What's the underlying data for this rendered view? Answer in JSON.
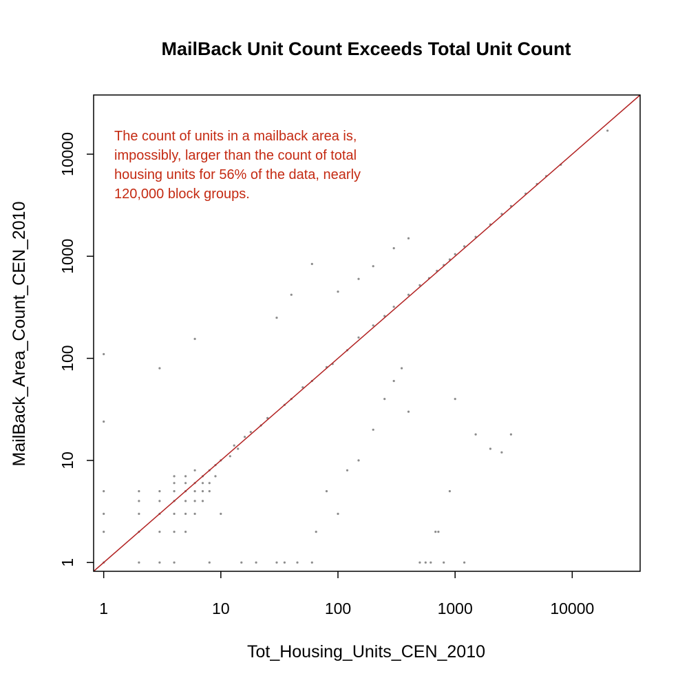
{
  "chart_data": {
    "type": "scatter",
    "title": "MailBack Unit Count Exceeds Total Unit Count",
    "xlabel": "Tot_Housing_Units_CEN_2010",
    "ylabel": "MailBack_Area_Count_CEN_2010",
    "x_scale": "log",
    "y_scale": "log",
    "xlim": [
      0.82,
      38000
    ],
    "ylim": [
      0.82,
      38000
    ],
    "x_ticks": [
      1,
      10,
      100,
      1000,
      10000
    ],
    "y_ticks": [
      1,
      10,
      100,
      1000,
      10000
    ],
    "x_tick_labels": [
      "1",
      "10",
      "100",
      "1000",
      "10000"
    ],
    "y_tick_labels": [
      "1",
      "10",
      "100",
      "1000",
      "10000"
    ],
    "grid": false,
    "legend": "none",
    "point_color": "#000000",
    "reference_line": {
      "type": "y=x",
      "color": "#b22222"
    },
    "annotation": [
      "The count of units in a mailback area is,",
      "impossibly, larger than the count of total",
      "housing units for 56% of the data, nearly",
      "120,000 block groups."
    ],
    "annotation_color": "#c42a12",
    "points": [
      [
        1,
        1
      ],
      [
        2,
        2
      ],
      [
        3,
        3
      ],
      [
        4,
        4
      ],
      [
        5,
        5
      ],
      [
        6,
        6
      ],
      [
        7,
        7
      ],
      [
        8,
        8
      ],
      [
        9,
        9
      ],
      [
        10,
        10
      ],
      [
        1,
        2
      ],
      [
        1,
        3
      ],
      [
        1,
        5
      ],
      [
        1,
        24
      ],
      [
        1,
        110
      ],
      [
        2,
        1
      ],
      [
        2,
        3
      ],
      [
        2,
        4
      ],
      [
        2,
        5
      ],
      [
        3,
        1
      ],
      [
        3,
        2
      ],
      [
        3,
        4
      ],
      [
        3,
        5
      ],
      [
        3,
        80
      ],
      [
        4,
        1
      ],
      [
        4,
        2
      ],
      [
        4,
        3
      ],
      [
        4,
        5
      ],
      [
        4,
        6
      ],
      [
        4,
        7
      ],
      [
        5,
        2
      ],
      [
        5,
        3
      ],
      [
        5,
        4
      ],
      [
        5,
        6
      ],
      [
        5,
        7
      ],
      [
        6,
        3
      ],
      [
        6,
        4
      ],
      [
        6,
        5
      ],
      [
        6,
        8
      ],
      [
        6,
        155
      ],
      [
        7,
        4
      ],
      [
        7,
        5
      ],
      [
        7,
        6
      ],
      [
        8,
        1
      ],
      [
        8,
        5
      ],
      [
        8,
        6
      ],
      [
        9,
        7
      ],
      [
        10,
        3
      ],
      [
        12,
        11
      ],
      [
        13,
        14
      ],
      [
        14,
        13
      ],
      [
        15,
        1
      ],
      [
        16,
        17
      ],
      [
        18,
        19
      ],
      [
        20,
        1
      ],
      [
        22,
        22
      ],
      [
        25,
        26
      ],
      [
        30,
        1
      ],
      [
        35,
        35
      ],
      [
        40,
        40
      ],
      [
        50,
        52
      ],
      [
        60,
        60
      ],
      [
        80,
        82
      ],
      [
        90,
        88
      ],
      [
        120,
        120
      ],
      [
        150,
        160
      ],
      [
        200,
        210
      ],
      [
        250,
        260
      ],
      [
        300,
        320
      ],
      [
        400,
        420
      ],
      [
        500,
        520
      ],
      [
        600,
        610
      ],
      [
        700,
        720
      ],
      [
        800,
        820
      ],
      [
        900,
        930
      ],
      [
        1000,
        1050
      ],
      [
        1200,
        1250
      ],
      [
        1500,
        1550
      ],
      [
        2000,
        2050
      ],
      [
        2500,
        2600
      ],
      [
        3000,
        3100
      ],
      [
        4000,
        4100
      ],
      [
        5000,
        5100
      ],
      [
        6000,
        6100
      ],
      [
        8000,
        7900
      ],
      [
        20000,
        17000
      ],
      [
        35,
        1
      ],
      [
        45,
        1
      ],
      [
        60,
        1
      ],
      [
        65,
        2
      ],
      [
        80,
        5
      ],
      [
        100,
        3
      ],
      [
        120,
        8
      ],
      [
        150,
        10
      ],
      [
        200,
        20
      ],
      [
        250,
        40
      ],
      [
        300,
        60
      ],
      [
        350,
        80
      ],
      [
        400,
        30
      ],
      [
        500,
        1
      ],
      [
        560,
        1
      ],
      [
        620,
        1
      ],
      [
        680,
        2
      ],
      [
        720,
        2
      ],
      [
        800,
        1
      ],
      [
        900,
        5
      ],
      [
        1000,
        40
      ],
      [
        1200,
        1
      ],
      [
        1500,
        18
      ],
      [
        2000,
        13
      ],
      [
        2500,
        12
      ],
      [
        3000,
        18
      ],
      [
        60,
        840
      ],
      [
        40,
        420
      ],
      [
        30,
        250
      ],
      [
        100,
        450
      ],
      [
        150,
        600
      ],
      [
        200,
        800
      ],
      [
        300,
        1200
      ],
      [
        400,
        1500
      ]
    ]
  }
}
